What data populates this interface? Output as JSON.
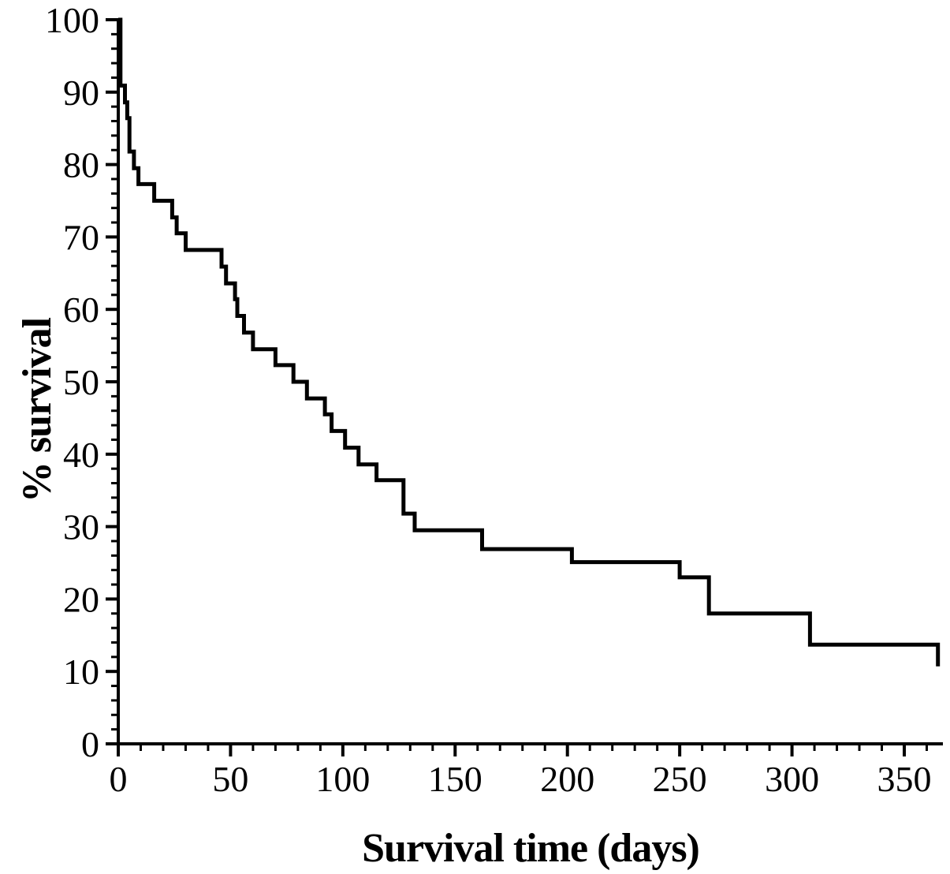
{
  "chart_data": {
    "type": "line",
    "subtype": "kaplan-meier-step-curve",
    "title": "",
    "xlabel": "Survival time (days)",
    "ylabel": "% survival",
    "xlim": [
      0,
      366
    ],
    "ylim": [
      0,
      100
    ],
    "x_ticks": [
      0,
      50,
      100,
      150,
      200,
      250,
      300,
      350
    ],
    "x_minor_tick_step": 10,
    "y_ticks": [
      0,
      10,
      20,
      30,
      40,
      50,
      60,
      70,
      80,
      90,
      100
    ],
    "y_minor_tick_step": 2,
    "grid": false,
    "legend": false,
    "line_color": "#000000",
    "background_color": "#ffffff",
    "series": [
      {
        "name": "% survival",
        "x_days": [
          0,
          1,
          3,
          4,
          5,
          7,
          9,
          16,
          24,
          26,
          30,
          46,
          48,
          52,
          53,
          56,
          60,
          70,
          78,
          84,
          92,
          95,
          101,
          107,
          115,
          127,
          132,
          162,
          202,
          250,
          263,
          308,
          365
        ],
        "y_percent": [
          100,
          90.9,
          88.6,
          86.4,
          81.8,
          79.5,
          77.3,
          75,
          72.7,
          70.5,
          68.2,
          65.9,
          63.6,
          61.4,
          59.1,
          56.8,
          54.5,
          52.3,
          50,
          47.7,
          45.5,
          43.2,
          40.9,
          38.6,
          36.4,
          31.8,
          29.5,
          26.9,
          25.1,
          23,
          18,
          13.7,
          10.7
        ]
      }
    ]
  }
}
